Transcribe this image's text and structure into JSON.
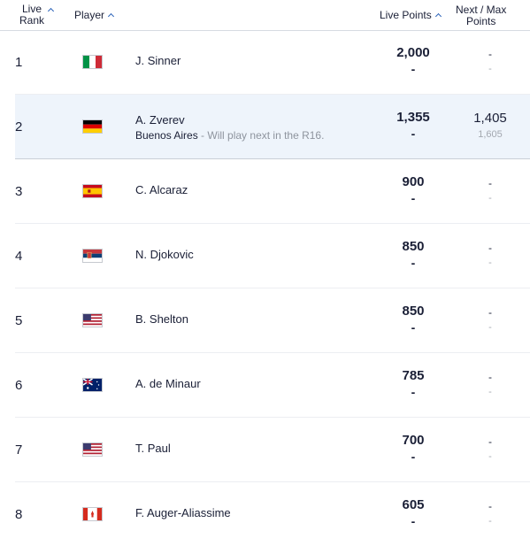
{
  "header": {
    "live_rank_line1": "Live",
    "live_rank_line2": "Rank",
    "player": "Player",
    "live_points": "Live Points",
    "next_max_line1": "Next / Max",
    "next_max_line2": "Points"
  },
  "rows": [
    {
      "rank": "1",
      "flag": "italy-flag",
      "name": "J. Sinner",
      "sub": "",
      "note": "",
      "points": "2,000",
      "points_sub": "-",
      "next": "-",
      "max": "-"
    },
    {
      "rank": "2",
      "flag": "germany-flag",
      "name": "A. Zverev",
      "sub": "Buenos Aires",
      "note": " - Will play next in the R16.",
      "points": "1,355",
      "points_sub": "-",
      "next": "1,405",
      "max": "1,605"
    },
    {
      "rank": "3",
      "flag": "spain-flag",
      "name": "C. Alcaraz",
      "sub": "",
      "note": "",
      "points": "900",
      "points_sub": "-",
      "next": "-",
      "max": "-"
    },
    {
      "rank": "4",
      "flag": "serbia-flag",
      "name": "N. Djokovic",
      "sub": "",
      "note": "",
      "points": "850",
      "points_sub": "-",
      "next": "-",
      "max": "-"
    },
    {
      "rank": "5",
      "flag": "usa-flag",
      "name": "B. Shelton",
      "sub": "",
      "note": "",
      "points": "850",
      "points_sub": "-",
      "next": "-",
      "max": "-"
    },
    {
      "rank": "6",
      "flag": "australia-flag",
      "name": "A. de Minaur",
      "sub": "",
      "note": "",
      "points": "785",
      "points_sub": "-",
      "next": "-",
      "max": "-"
    },
    {
      "rank": "7",
      "flag": "usa-flag",
      "name": "T. Paul",
      "sub": "",
      "note": "",
      "points": "700",
      "points_sub": "-",
      "next": "-",
      "max": "-"
    },
    {
      "rank": "8",
      "flag": "canada-flag",
      "name": "F. Auger-Aliassime",
      "sub": "",
      "note": "",
      "points": "605",
      "points_sub": "-",
      "next": "-",
      "max": "-"
    }
  ],
  "colors": {
    "accent": "#2a62b8",
    "highlight_row": "#eef4fb"
  }
}
